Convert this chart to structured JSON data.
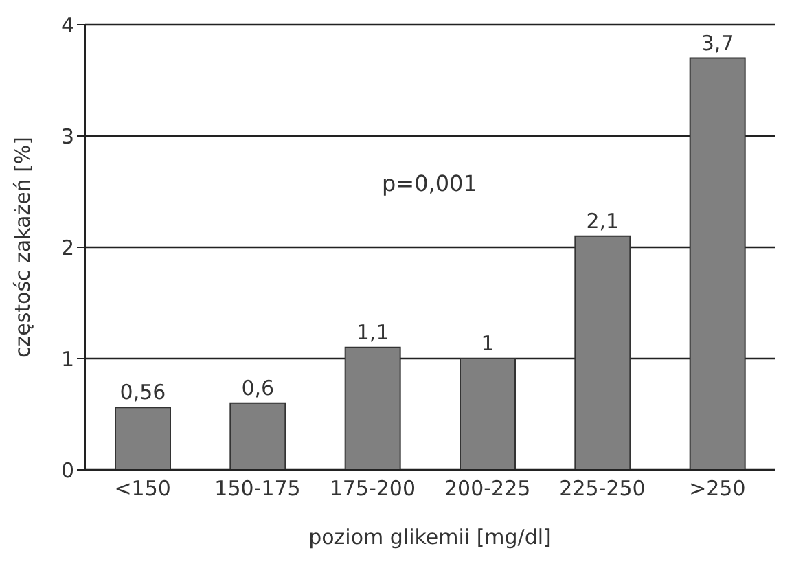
{
  "chart_data": {
    "type": "bar",
    "xlabel": "poziom glikemii [mg/dl]",
    "ylabel": "częstośc zakażeń [%]",
    "categories": [
      "<150",
      "150-175",
      "175-200",
      "200-225",
      "225-250",
      ">250"
    ],
    "values": [
      0.56,
      0.6,
      1.1,
      1,
      2.1,
      3.7
    ],
    "value_labels": [
      "0,56",
      "0,6",
      "1,1",
      "1",
      "2,1",
      "3,7"
    ],
    "color": "#808080",
    "ylim": [
      0,
      4
    ],
    "yticks": [
      0,
      1,
      2,
      3,
      4
    ],
    "grid": "y",
    "annotations": [
      "p=0,001"
    ]
  }
}
